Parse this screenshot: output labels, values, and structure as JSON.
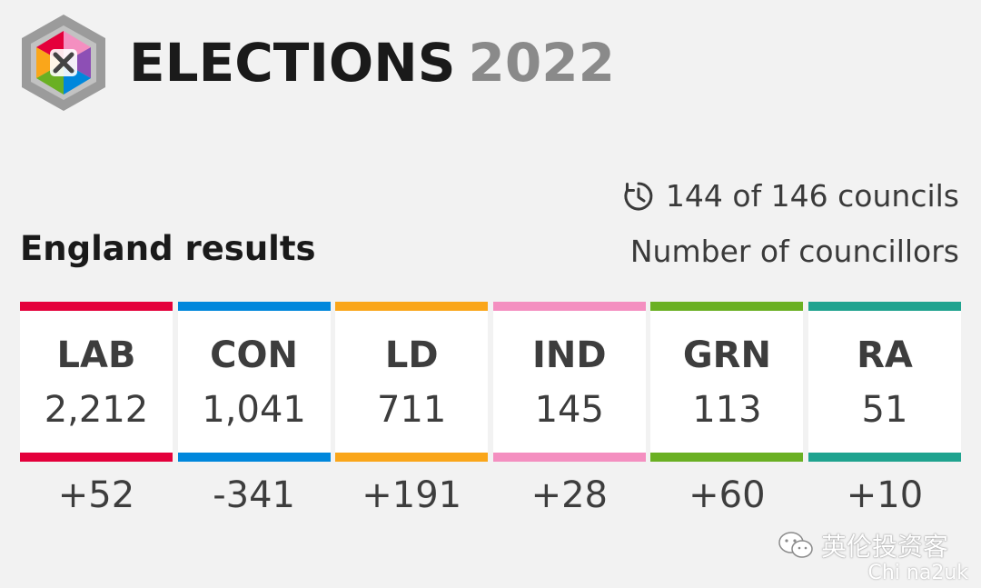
{
  "header": {
    "title": "ELECTIONS",
    "year": "2022",
    "logo_icon": "hexagon-cross-logo"
  },
  "progress": {
    "icon": "clock-icon",
    "text": "144 of 146 councils"
  },
  "subtitle": "Number of councillors",
  "region": "England results",
  "parties": [
    {
      "abbr": "LAB",
      "seats": "2,212",
      "change": "+52",
      "color": "#e4003b"
    },
    {
      "abbr": "CON",
      "seats": "1,041",
      "change": "-341",
      "color": "#0087dc"
    },
    {
      "abbr": "LD",
      "seats": "711",
      "change": "+191",
      "color": "#faa61a"
    },
    {
      "abbr": "IND",
      "seats": "145",
      "change": "+28",
      "color": "#f48fc0"
    },
    {
      "abbr": "GRN",
      "seats": "113",
      "change": "+60",
      "color": "#6ab023"
    },
    {
      "abbr": "RA",
      "seats": "51",
      "change": "+10",
      "color": "#1fa38f"
    }
  ],
  "watermark": {
    "text": "英伦投资客",
    "subtext": "Chi na2uk"
  }
}
